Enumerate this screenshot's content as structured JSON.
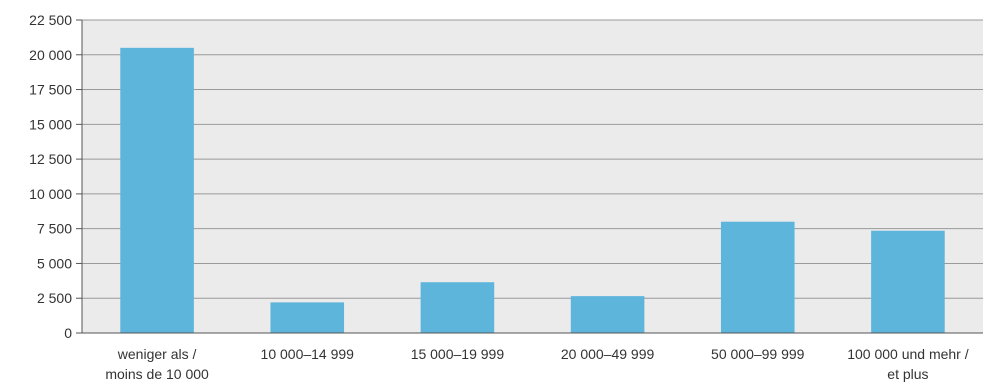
{
  "chart_data": {
    "type": "bar",
    "title": "",
    "xlabel": "",
    "ylabel": "",
    "categories": [
      [
        "weniger als /",
        "moins de 10 000"
      ],
      [
        "10 000–14 999"
      ],
      [
        "15 000–19 999"
      ],
      [
        "20 000–49 999"
      ],
      [
        "50 000–99 999"
      ],
      [
        "100 000 und mehr /",
        "et plus"
      ]
    ],
    "values": [
      20500,
      2200,
      3650,
      2650,
      8000,
      7350
    ],
    "ylim": [
      0,
      22500
    ],
    "yticks": [
      0,
      2500,
      5000,
      7500,
      10000,
      12500,
      15000,
      17500,
      20000,
      22500
    ],
    "ytick_labels": [
      "0",
      "2 500",
      "5 000",
      "7 500",
      "10 000",
      "12 500",
      "15 000",
      "17 500",
      "20 000",
      "22 500"
    ],
    "grid": true,
    "legend": "none",
    "colors": {
      "bar": "#5db5dc",
      "plot_background": "#ebebeb",
      "grid": "#9a9a9a",
      "axis": "#555555"
    }
  }
}
